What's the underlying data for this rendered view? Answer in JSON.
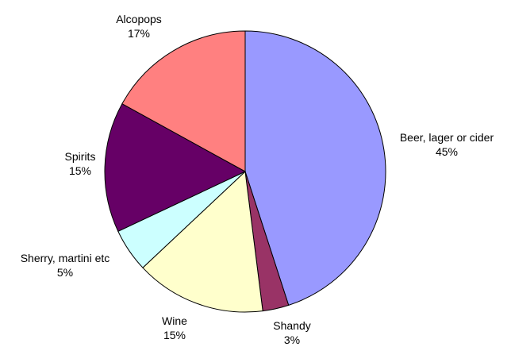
{
  "chart_data": {
    "type": "pie",
    "title": "",
    "slices": [
      {
        "label": "Beer, lager or cider",
        "value": 45,
        "value_label": "45%",
        "color": "#9999FF"
      },
      {
        "label": "Shandy",
        "value": 3,
        "value_label": "3%",
        "color": "#993366"
      },
      {
        "label": "Wine",
        "value": 15,
        "value_label": "15%",
        "color": "#FFFFCC"
      },
      {
        "label": "Sherry, martini etc",
        "value": 5,
        "value_label": "5%",
        "color": "#CCFFFF"
      },
      {
        "label": "Spirits",
        "value": 15,
        "value_label": "15%",
        "color": "#660066"
      },
      {
        "label": "Alcopops",
        "value": 17,
        "value_label": "17%",
        "color": "#FF8080"
      }
    ],
    "legend": "none"
  }
}
